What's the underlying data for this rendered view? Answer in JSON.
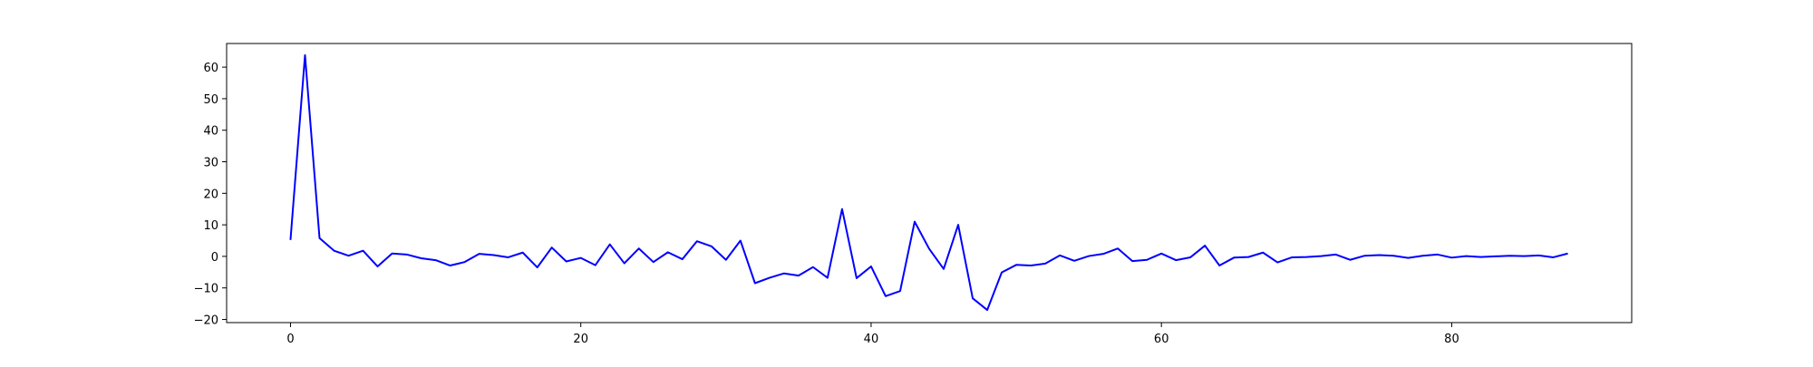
{
  "chart_data": {
    "type": "line",
    "title": "",
    "xlabel": "",
    "ylabel": "",
    "xlim": [
      -4.4,
      92.4
    ],
    "ylim": [
      -21.0,
      67.5
    ],
    "xticks": [
      0,
      20,
      40,
      60,
      80
    ],
    "yticks": [
      -20,
      -10,
      0,
      10,
      20,
      30,
      40,
      50,
      60
    ],
    "grid": false,
    "legend": "none",
    "series": [
      {
        "color": "#0000ff",
        "x": [
          0,
          1,
          2,
          3,
          4,
          5,
          6,
          7,
          8,
          9,
          10,
          11,
          12,
          13,
          14,
          15,
          16,
          17,
          18,
          19,
          20,
          21,
          22,
          23,
          24,
          25,
          26,
          27,
          28,
          29,
          30,
          31,
          32,
          33,
          34,
          35,
          36,
          37,
          38,
          39,
          40,
          41,
          42,
          43,
          44,
          45,
          46,
          47,
          48,
          49,
          50,
          51,
          52,
          53,
          54,
          55,
          56,
          57,
          58,
          59,
          60,
          61,
          62,
          63,
          64,
          65,
          66,
          67,
          68,
          69,
          70,
          71,
          72,
          73,
          74,
          75,
          76,
          77,
          78,
          79,
          80,
          81,
          82,
          83,
          84,
          85,
          86,
          87,
          88
        ],
        "values": [
          5.2,
          63.8,
          5.8,
          1.8,
          0.2,
          1.8,
          -3.2,
          0.9,
          0.6,
          -0.6,
          -1.2,
          -2.9,
          -1.8,
          0.8,
          0.4,
          -0.3,
          1.2,
          -3.5,
          2.8,
          -1.6,
          -0.5,
          -2.8,
          3.8,
          -2.2,
          2.5,
          -1.8,
          1.3,
          -0.9,
          4.8,
          3.2,
          -1.1,
          5.0,
          -8.5,
          -6.8,
          -5.4,
          -6.1,
          -3.4,
          -6.8,
          15.0,
          -6.9,
          -3.2,
          -12.6,
          -11.0,
          11.0,
          2.4,
          -4.0,
          10.0,
          -13.3,
          -17.0,
          -5.1,
          -2.7,
          -2.9,
          -2.3,
          0.3,
          -1.4,
          0.1,
          0.8,
          2.5,
          -1.5,
          -1.1,
          0.9,
          -1.2,
          -0.3,
          3.4,
          -2.9,
          -0.4,
          -0.2,
          1.2,
          -1.9,
          -0.3,
          -0.2,
          0.1,
          0.6,
          -1.1,
          0.2,
          0.4,
          0.2,
          -0.5,
          0.2,
          0.6,
          -0.4,
          0.1,
          -0.2,
          0.0,
          0.2,
          0.1,
          0.3,
          -0.3,
          0.9
        ]
      }
    ]
  }
}
